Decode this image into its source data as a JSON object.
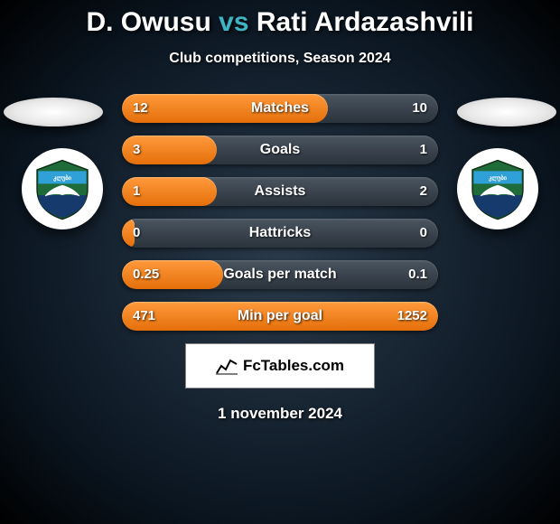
{
  "title": {
    "player1": "D. Owusu",
    "vs": "vs",
    "player2": "Rati Ardazashvili"
  },
  "subtitle": "Club competitions, Season 2024",
  "colors": {
    "fill": "#ed7b18",
    "track": "#3a444e",
    "accent": "#3fb5c4",
    "text": "#ffffff",
    "shield_top": "#2fa0d8",
    "shield_mid": "#1f6b3a",
    "shield_bottom": "#163a6b",
    "shield_wing": "#ffffff"
  },
  "bars": [
    {
      "label": "Matches",
      "left": "12",
      "right": "10",
      "fill_pct": 65
    },
    {
      "label": "Goals",
      "left": "3",
      "right": "1",
      "fill_pct": 30
    },
    {
      "label": "Assists",
      "left": "1",
      "right": "2",
      "fill_pct": 30
    },
    {
      "label": "Hattricks",
      "left": "0",
      "right": "0",
      "fill_pct": 4
    },
    {
      "label": "Goals per match",
      "left": "0.25",
      "right": "0.1",
      "fill_pct": 32
    },
    {
      "label": "Min per goal",
      "left": "471",
      "right": "1252",
      "fill_pct": 100
    }
  ],
  "branding": {
    "text": "FcTables.com"
  },
  "date": "1 november 2024"
}
